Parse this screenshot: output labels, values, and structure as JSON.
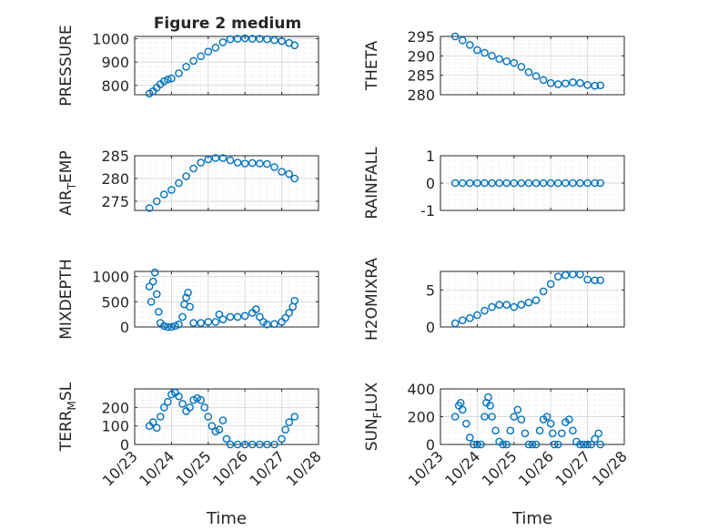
{
  "figure": {
    "title": "Figure 2 medium",
    "series_color": "#0072BD",
    "background": "#ffffff",
    "axes_color": "#262626",
    "grid_color": "#dcdcdc"
  },
  "chart_data": [
    {
      "type": "scatter",
      "ylabel": "PRESSURE",
      "ylim": [
        760,
        1010
      ],
      "yticks": [
        800,
        900,
        1000
      ],
      "grid": true,
      "minor_grid": true,
      "x": [
        23.4,
        23.5,
        23.6,
        23.7,
        23.8,
        23.9,
        24.0,
        24.2,
        24.4,
        24.6,
        24.8,
        25.0,
        25.2,
        25.4,
        25.6,
        25.8,
        26.0,
        26.2,
        26.4,
        26.6,
        26.8,
        27.0,
        27.2,
        27.35
      ],
      "y": [
        765,
        775,
        790,
        805,
        818,
        825,
        830,
        852,
        880,
        905,
        925,
        945,
        962,
        985,
        998,
        1000,
        1002,
        1000,
        1000,
        998,
        994,
        990,
        982,
        972
      ]
    },
    {
      "type": "scatter",
      "ylabel": "THETA",
      "ylim": [
        280,
        295
      ],
      "yticks": [
        280,
        285,
        290,
        295
      ],
      "grid": true,
      "minor_grid": true,
      "x": [
        23.4,
        23.6,
        23.8,
        24.0,
        24.2,
        24.4,
        24.6,
        24.8,
        25.0,
        25.2,
        25.4,
        25.6,
        25.8,
        26.0,
        26.2,
        26.4,
        26.6,
        26.8,
        27.0,
        27.2,
        27.35
      ],
      "y": [
        295,
        294,
        292.8,
        291.5,
        290.8,
        290,
        289.2,
        288.6,
        288.2,
        287.2,
        285.8,
        284.8,
        283.8,
        283,
        282.7,
        282.9,
        283.2,
        283,
        282.5,
        282.3,
        282.4
      ]
    },
    {
      "type": "scatter",
      "ylabel": "AIR_TEMP",
      "ylim": [
        273,
        285
      ],
      "yticks": [
        275,
        280,
        285
      ],
      "grid": true,
      "minor_grid": true,
      "x": [
        23.4,
        23.6,
        23.8,
        24.0,
        24.2,
        24.4,
        24.6,
        24.8,
        25.0,
        25.2,
        25.4,
        25.6,
        25.8,
        26.0,
        26.2,
        26.4,
        26.6,
        26.8,
        27.0,
        27.2,
        27.35
      ],
      "y": [
        273.5,
        275,
        276.5,
        277.5,
        279,
        280.5,
        282.2,
        283.5,
        284.2,
        284.5,
        284.5,
        284,
        283.5,
        283.3,
        283.4,
        283.3,
        283.2,
        282.5,
        281.5,
        281,
        280
      ]
    },
    {
      "type": "scatter",
      "ylabel": "RAINFALL",
      "ylim": [
        -1,
        1
      ],
      "yticks": [
        -1,
        0,
        1
      ],
      "grid": true,
      "minor_grid": true,
      "x": [
        23.4,
        23.6,
        23.8,
        24.0,
        24.2,
        24.4,
        24.6,
        24.8,
        25.0,
        25.2,
        25.4,
        25.6,
        25.8,
        26.0,
        26.2,
        26.4,
        26.6,
        26.8,
        27.0,
        27.2,
        27.35
      ],
      "y": [
        0,
        0,
        0,
        0,
        0,
        0,
        0,
        0,
        0,
        0,
        0,
        0,
        0,
        0,
        0,
        0,
        0,
        0,
        0,
        0,
        0
      ]
    },
    {
      "type": "scatter",
      "ylabel": "MIXDEPTH",
      "ylim": [
        0,
        1100
      ],
      "yticks": [
        0,
        500,
        1000
      ],
      "grid": true,
      "minor_grid": true,
      "x": [
        23.4,
        23.45,
        23.5,
        23.55,
        23.6,
        23.65,
        23.7,
        23.8,
        23.9,
        24.0,
        24.1,
        24.2,
        24.3,
        24.35,
        24.4,
        24.45,
        24.5,
        24.6,
        24.8,
        25.0,
        25.2,
        25.3,
        25.4,
        25.6,
        25.8,
        26.0,
        26.2,
        26.3,
        26.4,
        26.5,
        26.6,
        26.8,
        27.0,
        27.1,
        27.2,
        27.3,
        27.35
      ],
      "y": [
        800,
        500,
        900,
        1080,
        650,
        300,
        80,
        20,
        0,
        0,
        20,
        50,
        200,
        450,
        580,
        680,
        400,
        80,
        80,
        100,
        100,
        250,
        150,
        200,
        200,
        220,
        280,
        350,
        200,
        100,
        50,
        60,
        100,
        180,
        280,
        400,
        520
      ]
    },
    {
      "type": "scatter",
      "ylabel": "H2OMIXRA",
      "ylim": [
        0,
        7.5
      ],
      "yticks": [
        0,
        5
      ],
      "grid": true,
      "minor_grid": true,
      "x": [
        23.4,
        23.6,
        23.8,
        24.0,
        24.2,
        24.4,
        24.6,
        24.8,
        25.0,
        25.2,
        25.4,
        25.6,
        25.8,
        26.0,
        26.2,
        26.4,
        26.6,
        26.8,
        27.0,
        27.2,
        27.35
      ],
      "y": [
        0.5,
        0.9,
        1.2,
        1.6,
        2.2,
        2.7,
        3.0,
        3.0,
        2.7,
        3.0,
        3.3,
        3.6,
        4.8,
        5.8,
        6.8,
        7.0,
        7.1,
        7.1,
        6.4,
        6.3,
        6.3
      ]
    },
    {
      "type": "scatter",
      "ylabel": "TERR_MSL",
      "ylim": [
        0,
        300
      ],
      "yticks": [
        0,
        100,
        200
      ],
      "grid": true,
      "minor_grid": true,
      "x": [
        23.4,
        23.5,
        23.6,
        23.7,
        23.8,
        23.9,
        24.0,
        24.1,
        24.2,
        24.3,
        24.4,
        24.5,
        24.6,
        24.7,
        24.8,
        24.9,
        25.0,
        25.1,
        25.2,
        25.3,
        25.4,
        25.5,
        25.6,
        25.8,
        26.0,
        26.2,
        26.4,
        26.6,
        26.8,
        27.0,
        27.1,
        27.2,
        27.35
      ],
      "y": [
        100,
        120,
        90,
        150,
        200,
        230,
        270,
        280,
        260,
        220,
        180,
        200,
        240,
        250,
        240,
        200,
        150,
        100,
        70,
        80,
        130,
        30,
        0,
        0,
        0,
        0,
        0,
        0,
        0,
        30,
        80,
        120,
        150
      ]
    },
    {
      "type": "scatter",
      "ylabel": "SUN_FLUX",
      "ylim": [
        0,
        400
      ],
      "yticks": [
        0,
        200,
        400
      ],
      "grid": true,
      "minor_grid": true,
      "x": [
        23.4,
        23.5,
        23.55,
        23.6,
        23.7,
        23.8,
        23.9,
        24.0,
        24.1,
        24.2,
        24.25,
        24.3,
        24.35,
        24.4,
        24.5,
        24.6,
        24.7,
        24.8,
        24.9,
        25.0,
        25.1,
        25.2,
        25.3,
        25.4,
        25.5,
        25.6,
        25.7,
        25.8,
        25.9,
        26.0,
        26.05,
        26.1,
        26.2,
        26.3,
        26.4,
        26.5,
        26.6,
        26.7,
        26.8,
        26.9,
        27.0,
        27.1,
        27.2,
        27.3,
        27.35
      ],
      "y": [
        200,
        280,
        300,
        250,
        150,
        50,
        0,
        0,
        0,
        200,
        300,
        340,
        280,
        200,
        100,
        20,
        0,
        0,
        100,
        200,
        250,
        180,
        80,
        0,
        0,
        0,
        100,
        180,
        200,
        150,
        80,
        0,
        0,
        80,
        160,
        180,
        100,
        20,
        0,
        0,
        0,
        0,
        40,
        80,
        0
      ]
    }
  ],
  "x_axis": {
    "min": 23,
    "max": 28,
    "ticks": [
      23,
      24,
      25,
      26,
      27,
      28
    ],
    "tick_labels": [
      "10/23",
      "10/24",
      "10/25",
      "10/26",
      "10/27",
      "10/28"
    ],
    "label": "Time"
  }
}
